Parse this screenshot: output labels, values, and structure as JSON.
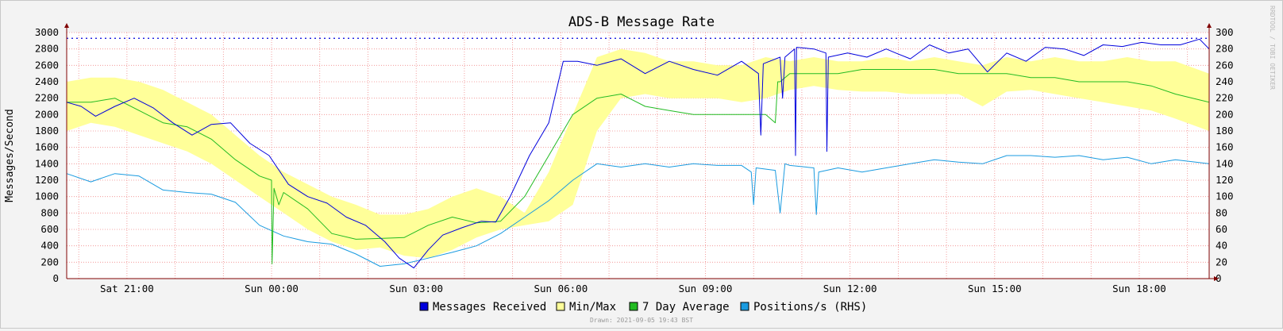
{
  "chart_data": {
    "type": "line",
    "title": "ADS-B Message Rate",
    "ylabel": "Messages/Second",
    "ylim": [
      0,
      3000
    ],
    "y2lim": [
      0,
      300
    ],
    "yticks": [
      "0",
      "200",
      "400",
      "600",
      "800",
      "1000",
      "1200",
      "1400",
      "1600",
      "1800",
      "2000",
      "2200",
      "2400",
      "2600",
      "2800",
      "3000"
    ],
    "y2ticks": [
      "0",
      "20",
      "40",
      "60",
      "80",
      "100",
      "120",
      "140",
      "160",
      "180",
      "200",
      "220",
      "240",
      "260",
      "280",
      "300"
    ],
    "xlim": [
      0,
      23.7
    ],
    "xticks": [
      {
        "at": 1.25,
        "label": "Sat 21:00"
      },
      {
        "at": 4.25,
        "label": "Sun 00:00"
      },
      {
        "at": 7.25,
        "label": "Sun 03:00"
      },
      {
        "at": 10.25,
        "label": "Sun 06:00"
      },
      {
        "at": 13.25,
        "label": "Sun 09:00"
      },
      {
        "at": 16.25,
        "label": "Sun 12:00"
      },
      {
        "at": 19.25,
        "label": "Sun 15:00"
      },
      {
        "at": 22.25,
        "label": "Sun 18:00"
      }
    ],
    "max_rate_line": 2930,
    "grid": true,
    "legend_position": "bottom",
    "colors": {
      "messages": "#0000dd",
      "minmax": "#ffff99",
      "avg": "#22bb22",
      "positions": "#1a9be0",
      "grid": "#f08a8a",
      "axis": "#800000"
    },
    "series": [
      {
        "name": "Messages Received",
        "axis": "left",
        "x": [
          0,
          0.3,
          0.6,
          1.0,
          1.4,
          1.8,
          2.2,
          2.6,
          3.0,
          3.4,
          3.8,
          4.2,
          4.6,
          5.0,
          5.4,
          5.8,
          6.2,
          6.6,
          6.9,
          7.2,
          7.5,
          7.8,
          8.2,
          8.6,
          8.9,
          9.2,
          9.6,
          10.0,
          10.3,
          10.6,
          11.0,
          11.5,
          12.0,
          12.5,
          13.0,
          13.5,
          14.0,
          14.35,
          14.4,
          14.45,
          14.8,
          14.85,
          14.9,
          15.1,
          15.12,
          15.14,
          15.5,
          15.75,
          15.77,
          15.8,
          16.2,
          16.6,
          17.0,
          17.2,
          17.5,
          17.9,
          18.3,
          18.7,
          19.1,
          19.5,
          19.9,
          20.3,
          20.7,
          21.1,
          21.5,
          21.9,
          22.3,
          22.7,
          23.1,
          23.5,
          23.7
        ],
        "values": [
          2150,
          2100,
          1980,
          2100,
          2200,
          2080,
          1900,
          1750,
          1880,
          1900,
          1650,
          1500,
          1150,
          1000,
          920,
          750,
          650,
          450,
          250,
          130,
          350,
          530,
          620,
          700,
          690,
          1000,
          1500,
          1900,
          2650,
          2650,
          2600,
          2680,
          2500,
          2650,
          2550,
          2480,
          2650,
          2500,
          1750,
          2620,
          2700,
          2200,
          2700,
          2800,
          1500,
          2820,
          2800,
          2750,
          1550,
          2700,
          2750,
          2700,
          2800,
          2750,
          2680,
          2850,
          2750,
          2800,
          2520,
          2750,
          2650,
          2820,
          2800,
          2720,
          2850,
          2830,
          2880,
          2850,
          2850,
          2920,
          2800
        ]
      },
      {
        "name": "Min/Max",
        "axis": "left",
        "x": [
          0,
          0.5,
          1.0,
          1.5,
          2.0,
          2.5,
          3.0,
          3.5,
          4.0,
          4.5,
          5.0,
          5.5,
          6.0,
          6.5,
          7.0,
          7.5,
          8.0,
          8.5,
          9.0,
          9.5,
          10.0,
          10.5,
          11.0,
          11.5,
          12.0,
          12.5,
          13.0,
          13.5,
          14.0,
          14.5,
          15.0,
          15.5,
          16.0,
          16.5,
          17.0,
          17.5,
          18.0,
          18.5,
          19.0,
          19.5,
          20.0,
          20.5,
          21.0,
          21.5,
          22.0,
          22.5,
          23.0,
          23.7
        ],
        "max": [
          2400,
          2450,
          2450,
          2400,
          2300,
          2150,
          2000,
          1750,
          1500,
          1300,
          1150,
          1000,
          900,
          780,
          780,
          850,
          1000,
          1100,
          1000,
          800,
          1300,
          2000,
          2700,
          2800,
          2750,
          2650,
          2650,
          2600,
          2600,
          2700,
          2650,
          2700,
          2650,
          2650,
          2700,
          2650,
          2700,
          2650,
          2600,
          2700,
          2650,
          2700,
          2650,
          2650,
          2700,
          2650,
          2650,
          2500
        ],
        "min": [
          1800,
          1900,
          1850,
          1750,
          1650,
          1550,
          1400,
          1200,
          1000,
          800,
          600,
          450,
          350,
          380,
          280,
          250,
          350,
          500,
          600,
          650,
          700,
          900,
          1800,
          2200,
          2250,
          2200,
          2200,
          2200,
          2150,
          2200,
          2300,
          2350,
          2300,
          2280,
          2280,
          2250,
          2250,
          2250,
          2100,
          2280,
          2300,
          2250,
          2200,
          2150,
          2100,
          2050,
          1950,
          1800
        ]
      },
      {
        "name": "7 Day Average",
        "axis": "left",
        "x": [
          0,
          0.5,
          1.0,
          1.5,
          2.0,
          2.5,
          3.0,
          3.5,
          4.0,
          4.25,
          4.26,
          4.3,
          4.4,
          4.5,
          5.0,
          5.5,
          6.0,
          6.5,
          7.0,
          7.5,
          8.0,
          8.5,
          9.0,
          9.5,
          10.0,
          10.5,
          11.0,
          11.5,
          12.0,
          12.5,
          13.0,
          13.5,
          14.0,
          14.5,
          14.7,
          14.75,
          14.8,
          15.0,
          15.5,
          16.0,
          16.5,
          17.0,
          17.5,
          18.0,
          18.5,
          19.0,
          19.5,
          20.0,
          20.5,
          21.0,
          21.5,
          22.0,
          22.5,
          23.0,
          23.7
        ],
        "values": [
          2150,
          2150,
          2200,
          2050,
          1900,
          1850,
          1700,
          1450,
          1250,
          1200,
          180,
          1100,
          900,
          1050,
          850,
          550,
          480,
          490,
          500,
          650,
          750,
          680,
          700,
          1000,
          1500,
          2000,
          2200,
          2250,
          2100,
          2050,
          2000,
          2000,
          2000,
          2000,
          1900,
          2400,
          2400,
          2500,
          2500,
          2500,
          2550,
          2550,
          2550,
          2550,
          2500,
          2500,
          2500,
          2450,
          2450,
          2400,
          2400,
          2400,
          2350,
          2250,
          2150
        ]
      },
      {
        "name": "Positions/s (RHS)",
        "axis": "right",
        "x": [
          0,
          0.5,
          1.0,
          1.5,
          2.0,
          2.5,
          3.0,
          3.5,
          4.0,
          4.5,
          5.0,
          5.5,
          6.0,
          6.5,
          7.0,
          7.5,
          8.0,
          8.5,
          9.0,
          9.5,
          10.0,
          10.5,
          11.0,
          11.5,
          12.0,
          12.5,
          13.0,
          13.5,
          14.0,
          14.2,
          14.25,
          14.3,
          14.7,
          14.8,
          14.9,
          15.0,
          15.5,
          15.55,
          15.6,
          16.0,
          16.5,
          17.0,
          17.5,
          18.0,
          18.5,
          19.0,
          19.5,
          20.0,
          20.5,
          21.0,
          21.5,
          22.0,
          22.5,
          23.0,
          23.7
        ],
        "values": [
          128,
          118,
          128,
          125,
          108,
          105,
          103,
          93,
          65,
          52,
          45,
          42,
          30,
          15,
          18,
          25,
          32,
          40,
          55,
          75,
          95,
          120,
          140,
          136,
          140,
          136,
          140,
          138,
          138,
          130,
          90,
          135,
          132,
          80,
          140,
          138,
          135,
          78,
          130,
          135,
          130,
          135,
          140,
          145,
          142,
          140,
          150,
          150,
          148,
          150,
          145,
          148,
          140,
          145,
          140
        ]
      }
    ]
  },
  "legend": [
    {
      "label": "Messages Received",
      "color": "#0000dd"
    },
    {
      "label": "Min/Max",
      "color": "#ffff99"
    },
    {
      "label": "7 Day Average",
      "color": "#22bb22"
    },
    {
      "label": "Positions/s (RHS)",
      "color": "#1a9be0"
    }
  ],
  "footer": {
    "drawn": "Drawn: 2021-09-05 19:43 BST"
  },
  "side_label": "RRDTOOL / TOBI OETIKER"
}
